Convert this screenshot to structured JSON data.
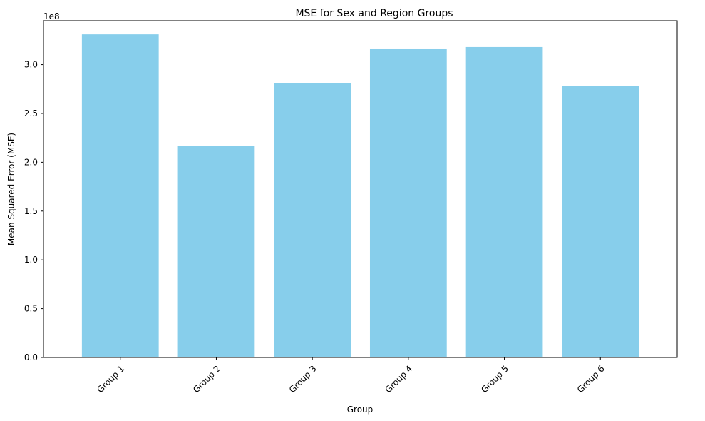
{
  "chart_data": {
    "type": "bar",
    "title": "MSE for Sex and Region Groups",
    "xlabel": "Group",
    "ylabel": "Mean Squared Error (MSE)",
    "categories": [
      "Group 1",
      "Group 2",
      "Group 3",
      "Group 4",
      "Group 5",
      "Group 6"
    ],
    "values": [
      331000000,
      216500000,
      281000000,
      316500000,
      318000000,
      278000000
    ],
    "ylim": [
      0,
      345000000
    ],
    "yticks": [
      0,
      50000000,
      100000000,
      150000000,
      200000000,
      250000000,
      300000000
    ],
    "ytick_labels": [
      "0.0",
      "0.5",
      "1.0",
      "1.5",
      "2.0",
      "2.5",
      "3.0"
    ],
    "y_multiplier": "1e8",
    "bar_color": "#87CEEB",
    "grid": false
  }
}
